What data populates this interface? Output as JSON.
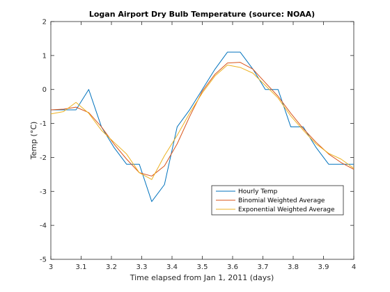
{
  "chart_data": {
    "type": "line",
    "title": "Logan Airport Dry Bulb Temperature (source: NOAA)",
    "xlabel": "Time elapsed from Jan 1, 2011 (days)",
    "ylabel": "Temp (°C)",
    "xlim": [
      3,
      4
    ],
    "ylim": [
      -5,
      2
    ],
    "xticks": [
      3,
      3.1,
      3.2,
      3.3,
      3.4,
      3.5,
      3.6,
      3.7,
      3.8,
      3.9,
      4
    ],
    "xtick_labels": [
      "3",
      "3.1",
      "3.2",
      "3.3",
      "3.4",
      "3.5",
      "3.6",
      "3.7",
      "3.8",
      "3.9",
      "4"
    ],
    "yticks": [
      -5,
      -4,
      -3,
      -2,
      -1,
      0,
      1,
      2
    ],
    "ytick_labels": [
      "-5",
      "-4",
      "-3",
      "-2",
      "-1",
      "0",
      "1",
      "2"
    ],
    "grid": false,
    "legend_position": "lower-right",
    "series": [
      {
        "name": "Hourly Temp",
        "color": "#0072BD",
        "x": [
          3.0,
          3.042,
          3.083,
          3.125,
          3.167,
          3.208,
          3.25,
          3.292,
          3.333,
          3.375,
          3.417,
          3.458,
          3.5,
          3.542,
          3.583,
          3.625,
          3.667,
          3.708,
          3.75,
          3.792,
          3.833,
          3.875,
          3.917,
          3.958,
          4.0
        ],
        "values": [
          -0.6,
          -0.6,
          -0.6,
          0.0,
          -1.1,
          -1.7,
          -2.2,
          -2.2,
          -3.3,
          -2.8,
          -1.1,
          -0.6,
          0.0,
          0.6,
          1.1,
          1.1,
          0.6,
          0.0,
          0.0,
          -1.1,
          -1.1,
          -1.7,
          -2.2,
          -2.2,
          -2.2
        ]
      },
      {
        "name": "Binomial Weighted Average",
        "color": "#D95319",
        "x": [
          3.0,
          3.042,
          3.083,
          3.125,
          3.167,
          3.208,
          3.25,
          3.292,
          3.333,
          3.375,
          3.417,
          3.458,
          3.5,
          3.542,
          3.583,
          3.625,
          3.667,
          3.708,
          3.75,
          3.792,
          3.833,
          3.875,
          3.917,
          3.958,
          4.0
        ],
        "values": [
          -0.6,
          -0.58,
          -0.52,
          -0.68,
          -1.1,
          -1.6,
          -2.05,
          -2.45,
          -2.55,
          -2.25,
          -1.6,
          -0.8,
          -0.05,
          0.45,
          0.78,
          0.8,
          0.6,
          0.2,
          -0.2,
          -0.7,
          -1.15,
          -1.55,
          -1.9,
          -2.15,
          -2.35
        ]
      },
      {
        "name": "Exponential Weighted Average",
        "color": "#EDB120",
        "x": [
          3.0,
          3.042,
          3.083,
          3.125,
          3.167,
          3.208,
          3.25,
          3.292,
          3.333,
          3.375,
          3.417,
          3.458,
          3.5,
          3.542,
          3.583,
          3.625,
          3.667,
          3.708,
          3.75,
          3.792,
          3.833,
          3.875,
          3.917,
          3.958,
          4.0
        ],
        "values": [
          -0.72,
          -0.65,
          -0.38,
          -0.7,
          -1.2,
          -1.55,
          -1.9,
          -2.45,
          -2.65,
          -1.95,
          -1.35,
          -0.7,
          -0.1,
          0.4,
          0.72,
          0.65,
          0.48,
          0.12,
          -0.25,
          -0.78,
          -1.2,
          -1.6,
          -1.88,
          -2.05,
          -2.32
        ]
      }
    ]
  }
}
